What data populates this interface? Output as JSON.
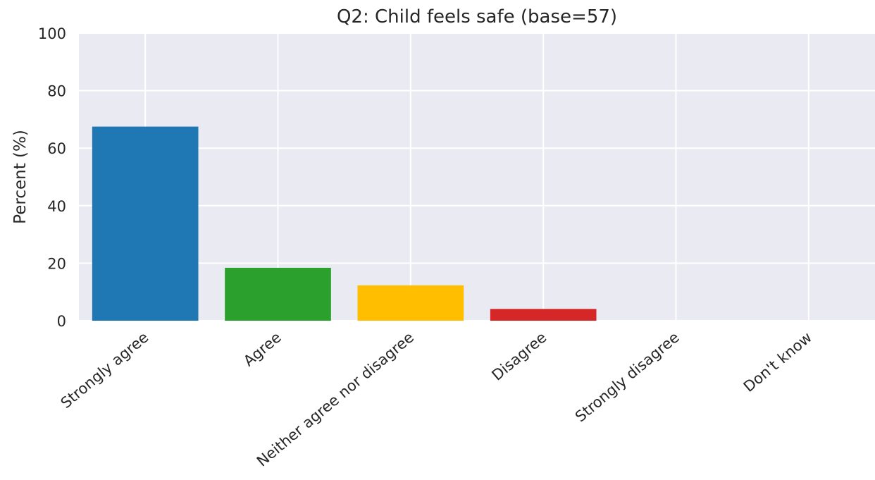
{
  "chart_data": {
    "type": "bar",
    "title": "Q2: Child feels safe (base=57)",
    "xlabel": "",
    "ylabel": "Percent (%)",
    "categories": [
      "Strongly agree",
      "Agree",
      "Neither agree nor disagree",
      "Disagree",
      "Strongly disagree",
      "Don't know"
    ],
    "values": [
      67.5,
      18.4,
      12.3,
      4.1,
      0,
      0
    ],
    "colors": [
      "#1f77b4",
      "#2ca02c",
      "#ffbf00",
      "#d62728",
      "#9467bd",
      "#8c564b"
    ],
    "ylim": [
      0,
      100
    ],
    "yticks": [
      0,
      20,
      40,
      60,
      80,
      100
    ],
    "grid": true,
    "background": "#eaeaf2"
  }
}
